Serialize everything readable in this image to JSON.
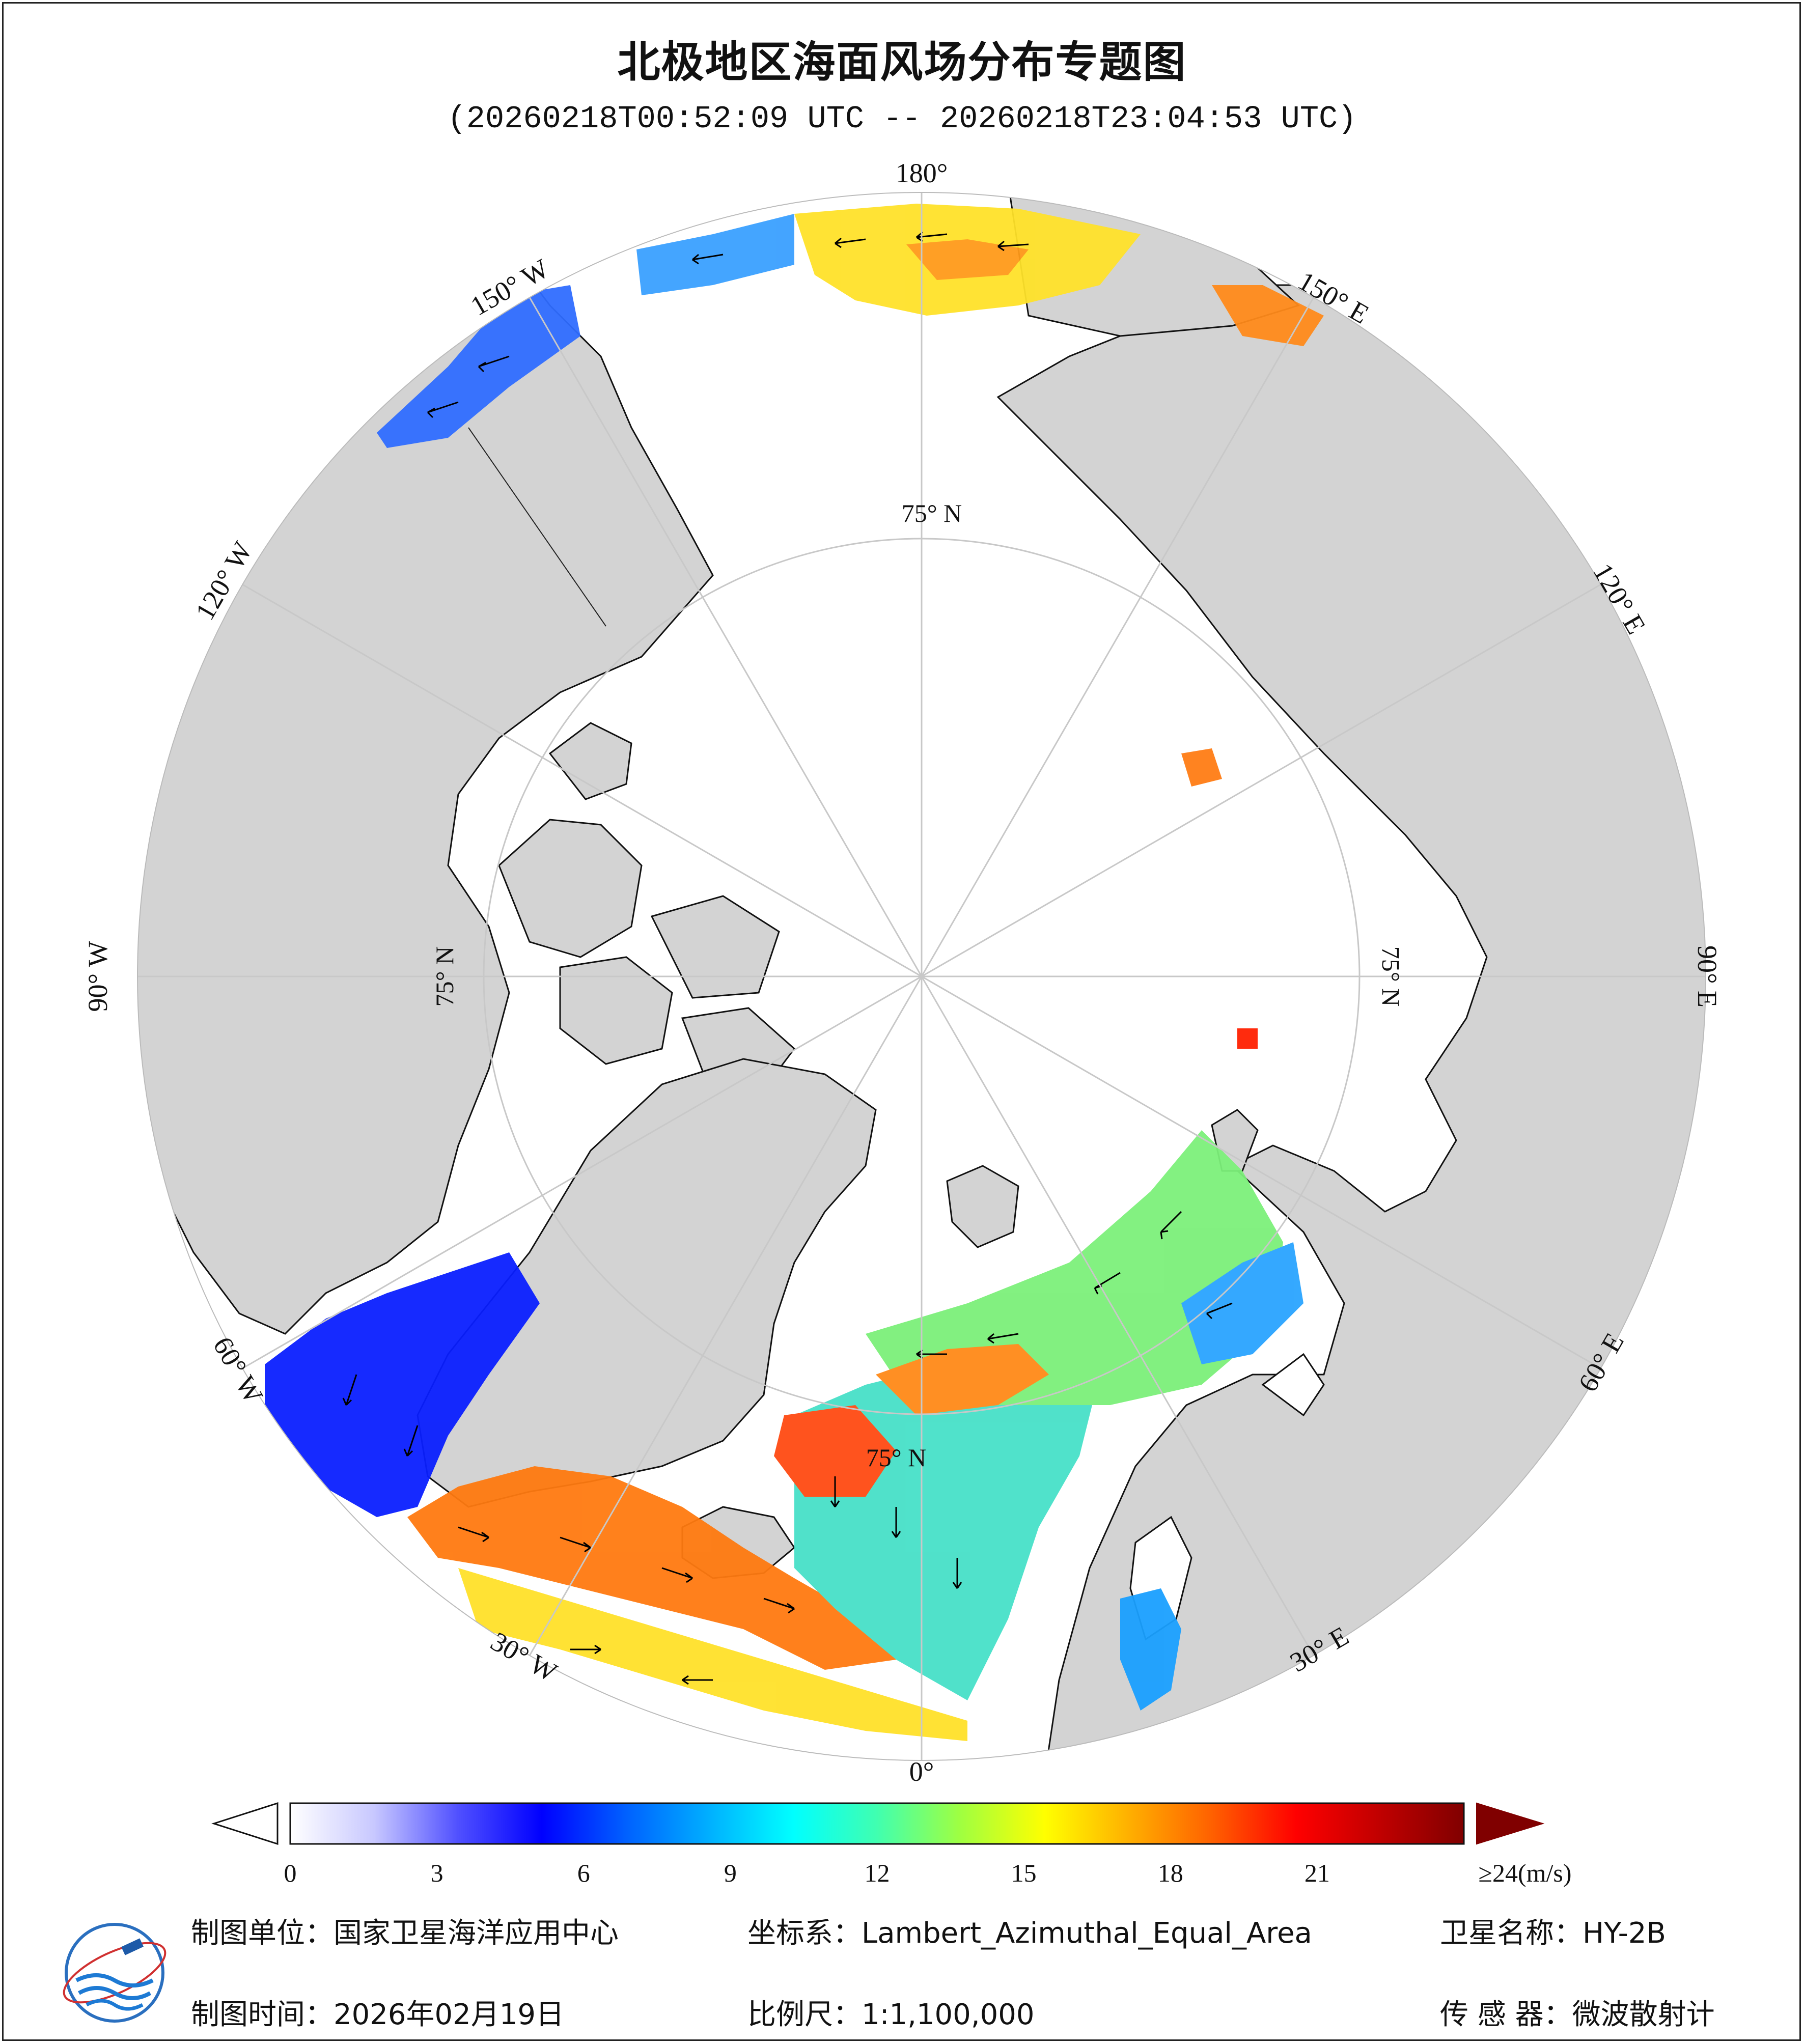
{
  "title": "北极地区海面风场分布专题图",
  "time_range": "(20260218T00:52:09 UTC -- 20260218T23:04:53 UTC)",
  "map": {
    "projection_note": "polar azimuthal view of the Arctic",
    "colors": {
      "land": "#d3d3d3",
      "ocean": "#ffffff",
      "graticule": "#c8c8c8",
      "coast": "#111111"
    },
    "meridian_labels": [
      {
        "text": "180°",
        "lon": 180
      },
      {
        "text": "150° E",
        "lon": 150
      },
      {
        "text": "120° E",
        "lon": 120
      },
      {
        "text": "90° E",
        "lon": 90
      },
      {
        "text": "60° E",
        "lon": 60
      },
      {
        "text": "30° E",
        "lon": 30
      },
      {
        "text": "0°",
        "lon": 0
      },
      {
        "text": "30° W",
        "lon": -30
      },
      {
        "text": "60° W",
        "lon": -60
      },
      {
        "text": "90° W",
        "lon": -90
      },
      {
        "text": "120° W",
        "lon": -120
      },
      {
        "text": "150° W",
        "lon": -150
      }
    ],
    "parallel_labels": [
      {
        "text": "75° N",
        "lon": 180
      },
      {
        "text": "75° N",
        "lon": 90
      },
      {
        "text": "75° N",
        "lon": 0
      },
      {
        "text": "75° N",
        "lon": -90
      }
    ]
  },
  "colorbar": {
    "ticks": [
      "0",
      "3",
      "6",
      "9",
      "12",
      "15",
      "18",
      "21",
      "≥24(m/s)"
    ],
    "tick_values": [
      0,
      3,
      6,
      9,
      12,
      15,
      18,
      21,
      24
    ],
    "stops": [
      "#ffffff",
      "#c8c8ff",
      "#5050ff",
      "#0000ff",
      "#0060ff",
      "#00b0ff",
      "#00ffff",
      "#40ffb0",
      "#a0ff40",
      "#ffff00",
      "#ffb000",
      "#ff6000",
      "#ff0000",
      "#c00000",
      "#800000"
    ],
    "over_color": "#800000"
  },
  "footer": {
    "unit_label": "制图单位：国家卫星海洋应用中心",
    "crs_label": "坐标系：Lambert_Azimuthal_Equal_Area",
    "satellite_label": "卫星名称：HY-2B",
    "date_label": "制图时间：2026年02月19日",
    "scale_label": "比例尺：1:1,100,000",
    "sensor_label": "传 感 器：微波散射计"
  }
}
